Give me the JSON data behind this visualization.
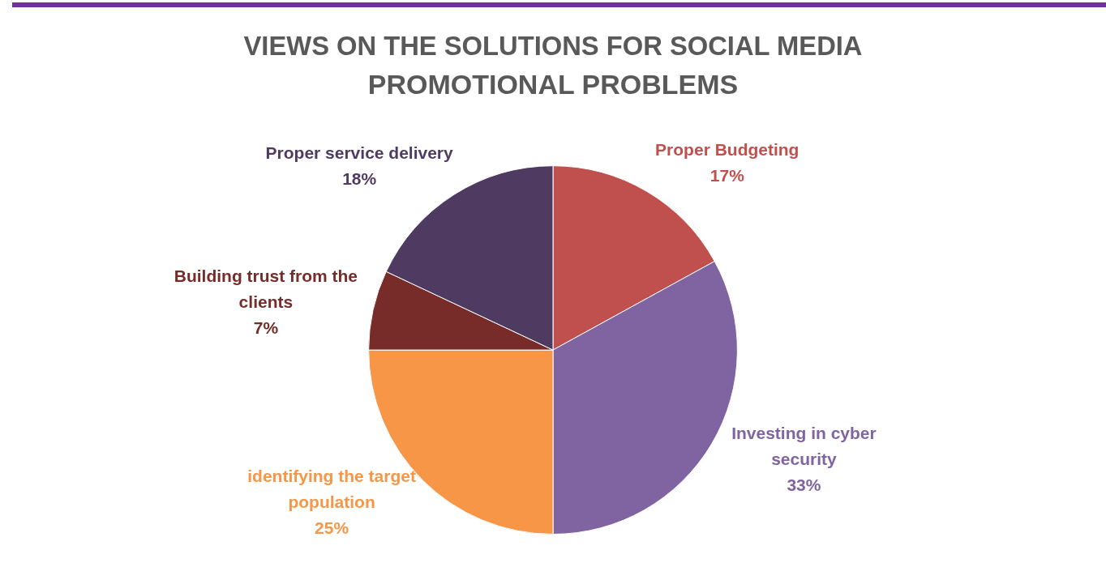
{
  "chart_data": {
    "type": "pie",
    "title": "VIEWS ON THE SOLUTIONS FOR SOCIAL MEDIA PROMOTIONAL PROBLEMS",
    "categories": [
      "Proper Budgeting",
      "Investing in cyber security",
      "identifying the target population",
      "Building trust from the clients",
      "Proper service delivery"
    ],
    "values": [
      17,
      33,
      25,
      7,
      18
    ],
    "colors": [
      "#c0504d",
      "#8064a2",
      "#f79646",
      "#772c2a",
      "#4f3b62"
    ],
    "value_labels": [
      "17%",
      "33%",
      "25%",
      "7%",
      "18%"
    ],
    "data_labels": true,
    "legend": false
  }
}
